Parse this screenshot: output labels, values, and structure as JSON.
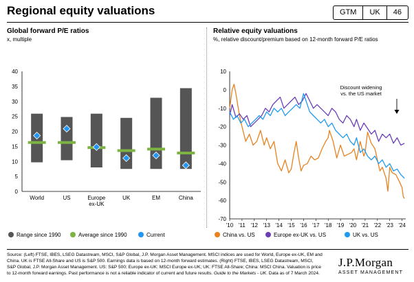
{
  "header": {
    "title": "Regional equity valuations",
    "badges": [
      "GTM",
      "UK",
      "46"
    ]
  },
  "left_panel": {
    "title": "Global forward P/E ratios",
    "subtitle": "x, multiple"
  },
  "right_panel": {
    "title": "Relative equity valuations",
    "subtitle": "%, relative discount/premium based on 12-month forward P/E ratios"
  },
  "footer": {
    "source_parts": [
      "Source: (Left) FTSE, IBES, LSEG Datastream, MSCI, S&P Global, J.P. Morgan Asset Management. MSCI indices are used for World, Europe ex-UK, EM and China. UK is FTSE All-Share and US is S&P 500. Earnings data is based on 12-month forward estimates. (Right) FTSE, IBES, LSEG Datastream, MSCI, S&P Global, J.P. Morgan Asset Management. US: S&P 500; Europe ex-UK: MSCI Europe ex-UK; UK: FTSE All-Share; China: MSCI China. Valuation is price to 12-month forward earnings. Past performance is not a reliable indicator of current and future results. ",
      "Guide to the Markets - UK",
      ". Data as of 7 March 2024."
    ],
    "logo_main": "J.P.Morgan",
    "logo_sub": "ASSET MANAGEMENT"
  },
  "colors": {
    "range": "#555555",
    "average": "#7cb342",
    "current": "#2196f3",
    "china": "#e8821e",
    "europe": "#6a3fb5",
    "uk": "#1f9bee"
  },
  "chart_data": [
    {
      "type": "bar",
      "categories": [
        "World",
        "US",
        "Europe ex-UK",
        "UK",
        "EM",
        "China"
      ],
      "category_lines": [
        [
          "World"
        ],
        [
          "US"
        ],
        [
          "Europe",
          "ex-UK"
        ],
        [
          "UK"
        ],
        [
          "EM"
        ],
        [
          "China"
        ]
      ],
      "ylim": [
        0,
        40
      ],
      "yticks": [
        0,
        5,
        10,
        15,
        20,
        25,
        30,
        35,
        40
      ],
      "series": [
        {
          "name": "Range since 1990",
          "low": [
            9.7,
            10.4,
            8.0,
            7.5,
            7.5,
            7.5
          ],
          "high": [
            25.9,
            24.8,
            25.9,
            24.5,
            31.2,
            34.4
          ]
        },
        {
          "name": "Average since 1990",
          "values": [
            16.3,
            16.3,
            14.6,
            13.6,
            14.1,
            12.8
          ]
        },
        {
          "name": "Current",
          "values": [
            18.6,
            20.9,
            14.8,
            11.1,
            12.0,
            8.7
          ]
        }
      ],
      "legend_position": "bottom"
    },
    {
      "type": "line",
      "xlim": [
        2010,
        2024.3
      ],
      "xtick_labels": [
        "'10",
        "'11",
        "'12",
        "'13",
        "'14",
        "'15",
        "'16",
        "'17",
        "'18",
        "'19",
        "'20",
        "'21",
        "'22",
        "'23",
        "'24"
      ],
      "xticks": [
        2010,
        2011,
        2012,
        2013,
        2014,
        2015,
        2016,
        2017,
        2018,
        2019,
        2020,
        2021,
        2022,
        2023,
        2024
      ],
      "ylim": [
        -70,
        10
      ],
      "yticks": [
        -70,
        -60,
        -50,
        -40,
        -30,
        -20,
        -10,
        0,
        10
      ],
      "annotation": [
        "Discount widening",
        "vs. the US market"
      ],
      "legend_position": "bottom",
      "series": [
        {
          "name": "China vs. US",
          "x": [
            2010.0,
            2010.2,
            2010.35,
            2010.5,
            2010.65,
            2010.8,
            2011.0,
            2011.3,
            2011.6,
            2011.9,
            2012.2,
            2012.5,
            2012.8,
            2013.0,
            2013.3,
            2013.6,
            2013.9,
            2014.2,
            2014.5,
            2014.8,
            2015.0,
            2015.2,
            2015.4,
            2015.6,
            2015.8,
            2016.0,
            2016.3,
            2016.6,
            2016.9,
            2017.2,
            2017.5,
            2017.8,
            2018.0,
            2018.1,
            2018.4,
            2018.7,
            2019.0,
            2019.3,
            2019.6,
            2019.9,
            2020.1,
            2020.3,
            2020.6,
            2020.9,
            2021.0,
            2021.2,
            2021.5,
            2021.8,
            2022.0,
            2022.2,
            2022.4,
            2022.7,
            2022.85,
            2023.0,
            2023.2,
            2023.5,
            2023.8,
            2024.0,
            2024.1,
            2024.2
          ],
          "values": [
            -10,
            0,
            3,
            -2,
            -8,
            -14,
            -20,
            -28,
            -24,
            -30,
            -28,
            -22,
            -30,
            -26,
            -32,
            -28,
            -40,
            -44,
            -38,
            -45,
            -43,
            -35,
            -28,
            -37,
            -44,
            -41,
            -40,
            -36,
            -38,
            -37,
            -32,
            -28,
            -26,
            -22,
            -28,
            -37,
            -30,
            -36,
            -35,
            -34,
            -32,
            -38,
            -28,
            -36,
            -34,
            -23,
            -29,
            -32,
            -38,
            -44,
            -42,
            -48,
            -55,
            -42,
            -45,
            -46,
            -50,
            -53,
            -58,
            -59
          ]
        },
        {
          "name": "Europe ex-UK vs. US",
          "x": [
            2010.0,
            2010.2,
            2010.5,
            2010.8,
            2011.1,
            2011.4,
            2011.7,
            2012.0,
            2012.3,
            2012.6,
            2012.9,
            2013.2,
            2013.5,
            2013.8,
            2014.1,
            2014.4,
            2014.7,
            2015.0,
            2015.3,
            2015.6,
            2015.9,
            2016.2,
            2016.5,
            2016.8,
            2017.1,
            2017.4,
            2017.7,
            2018.0,
            2018.3,
            2018.6,
            2018.9,
            2019.2,
            2019.5,
            2019.8,
            2020.1,
            2020.3,
            2020.6,
            2020.9,
            2021.2,
            2021.5,
            2021.8,
            2022.1,
            2022.4,
            2022.7,
            2023.0,
            2023.3,
            2023.6,
            2023.9,
            2024.2
          ],
          "values": [
            -14,
            -8,
            -15,
            -13,
            -16,
            -14,
            -20,
            -18,
            -16,
            -14,
            -10,
            -12,
            -8,
            -6,
            -4,
            -10,
            -8,
            -6,
            -4,
            -8,
            -6,
            -2,
            -6,
            -10,
            -8,
            -10,
            -12,
            -14,
            -10,
            -12,
            -16,
            -18,
            -14,
            -16,
            -20,
            -16,
            -22,
            -18,
            -21,
            -24,
            -22,
            -28,
            -24,
            -26,
            -24,
            -29,
            -26,
            -30,
            -29
          ]
        },
        {
          "name": "UK vs. US",
          "x": [
            2010.0,
            2010.3,
            2010.6,
            2010.9,
            2011.2,
            2011.5,
            2011.8,
            2012.1,
            2012.4,
            2012.7,
            2013.0,
            2013.3,
            2013.6,
            2013.9,
            2014.2,
            2014.5,
            2014.8,
            2015.1,
            2015.4,
            2015.7,
            2016.0,
            2016.2,
            2016.5,
            2016.8,
            2017.1,
            2017.4,
            2017.7,
            2018.0,
            2018.3,
            2018.6,
            2018.9,
            2019.2,
            2019.5,
            2019.8,
            2020.1,
            2020.3,
            2020.6,
            2020.9,
            2021.2,
            2021.5,
            2021.8,
            2022.1,
            2022.4,
            2022.7,
            2023.0,
            2023.3,
            2023.6,
            2023.9,
            2024.2
          ],
          "values": [
            -12,
            -16,
            -14,
            -18,
            -16,
            -20,
            -18,
            -16,
            -14,
            -16,
            -12,
            -14,
            -10,
            -12,
            -10,
            -14,
            -12,
            -10,
            -8,
            -10,
            -2,
            -6,
            -12,
            -14,
            -16,
            -18,
            -16,
            -20,
            -18,
            -22,
            -24,
            -26,
            -24,
            -28,
            -30,
            -26,
            -34,
            -32,
            -36,
            -38,
            -36,
            -40,
            -38,
            -42,
            -40,
            -44,
            -43,
            -46,
            -48
          ]
        }
      ]
    }
  ]
}
